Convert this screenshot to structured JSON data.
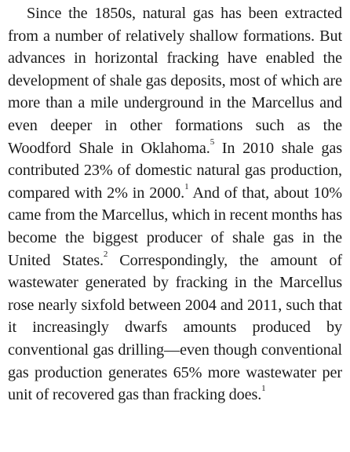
{
  "paragraph": {
    "segments": [
      {
        "text": "Since the 1850s, natural gas has been extracted from a number of relatively shallow formations. But advances in horizontal fracking have enabled the development of shale gas deposits, most of which are more than a mile underground in the Marcellus and even deeper in other formations such as the Woodford Shale in Oklahoma.",
        "sup": "5"
      },
      {
        "text": " In 2010 shale gas contributed 23% of domestic natural gas production, compared with 2% in 2000.",
        "sup": "1"
      },
      {
        "text": " And of that, about 10% came from the Marcellus, which in recent months has become the biggest producer of shale gas in the United States.",
        "sup": "2"
      },
      {
        "text": " Correspondingly, the amount of wastewater generated by fracking in the Marcellus rose nearly sixfold between 2004 and 2011, such that it increasingly dwarfs amounts produced by conventional gas drilling—even though conventional gas production generates 65% more wastewater per unit of recovered gas than fracking does.",
        "sup": "1"
      }
    ]
  }
}
